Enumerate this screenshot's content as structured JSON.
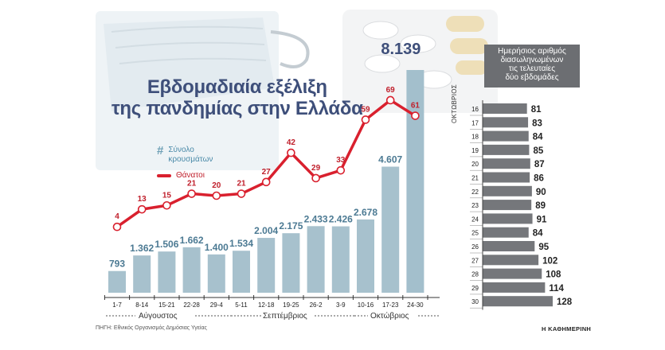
{
  "title_lines": [
    "Εβδομαδιαία εξέλιξη",
    "της πανδημίας στην Ελλάδα"
  ],
  "legend": {
    "cases_symbol": "#",
    "cases_label_1": "Σύνολο",
    "cases_label_2": "κρουσμάτων",
    "deaths_label": "Θάνατοι"
  },
  "source": "ΠΗΓΗ: Εθνικός Οργανισμός Δημόσιας Υγείας",
  "brand": "Η ΚΑΘΗΜΕΡΙΝΗ",
  "months": {
    "aug": "Αύγουστος",
    "sep": "Σεπτέμβριος",
    "oct": "Οκτώβριος"
  },
  "right_panel": {
    "title_lines": [
      "Ημερήσιος αριθμός",
      "διασωληνωμένων",
      "τις τελευταίες",
      "δύο εβδομάδες"
    ],
    "month_label": "ΟΚΤΩΒΡΙΟΣ"
  },
  "colors": {
    "bar": "#a7c1cd",
    "bar_last": "#a3bfcc",
    "line": "#d9202e",
    "right_bar": "#75777b",
    "title": "#3e4f7a"
  },
  "chart_data": [
    {
      "type": "bar",
      "title": "Εβδομαδιαία εξέλιξη της πανδημίας στην Ελλάδα",
      "categories": [
        "1-7",
        "8-14",
        "15-21",
        "22-28",
        "29-4",
        "5-11",
        "12-18",
        "19-25",
        "26-2",
        "3-9",
        "10-16",
        "17-23",
        "24-30"
      ],
      "series": [
        {
          "name": "Σύνολο κρουσμάτων",
          "kind": "bar",
          "values": [
            793,
            1362,
            1506,
            1662,
            1400,
            1534,
            2004,
            2175,
            2433,
            2426,
            2678,
            4607,
            8139
          ],
          "labels": [
            "793",
            "1.362",
            "1.506",
            "1.662",
            "1.400",
            "1.534",
            "2.004",
            "2.175",
            "2.433",
            "2.426",
            "2.678",
            "4.607",
            "8.139"
          ]
        },
        {
          "name": "Θάνατοι",
          "kind": "line",
          "values": [
            4,
            13,
            15,
            21,
            20,
            21,
            27,
            42,
            29,
            33,
            59,
            69,
            61
          ]
        }
      ],
      "month_groups": [
        {
          "label": "Αύγουστος",
          "from": "1-7",
          "to": "29-4"
        },
        {
          "label": "Σεπτέμβριος",
          "from": "5-11",
          "to": "26-2"
        },
        {
          "label": "Οκτώβριος",
          "from": "3-9",
          "to": "24-30"
        }
      ]
    },
    {
      "type": "bar",
      "orientation": "horizontal",
      "title": "Ημερήσιος αριθμός διασωληνωμένων τις τελευταίες δύο εβδομάδες",
      "categories": [
        "16",
        "17",
        "18",
        "19",
        "20",
        "21",
        "22",
        "23",
        "24",
        "25",
        "26",
        "27",
        "28",
        "29",
        "30"
      ],
      "values": [
        81,
        83,
        84,
        85,
        87,
        86,
        90,
        89,
        91,
        84,
        95,
        102,
        108,
        114,
        128
      ],
      "ylabel": "ΟΚΤΩΒΡΙΟΣ"
    }
  ]
}
